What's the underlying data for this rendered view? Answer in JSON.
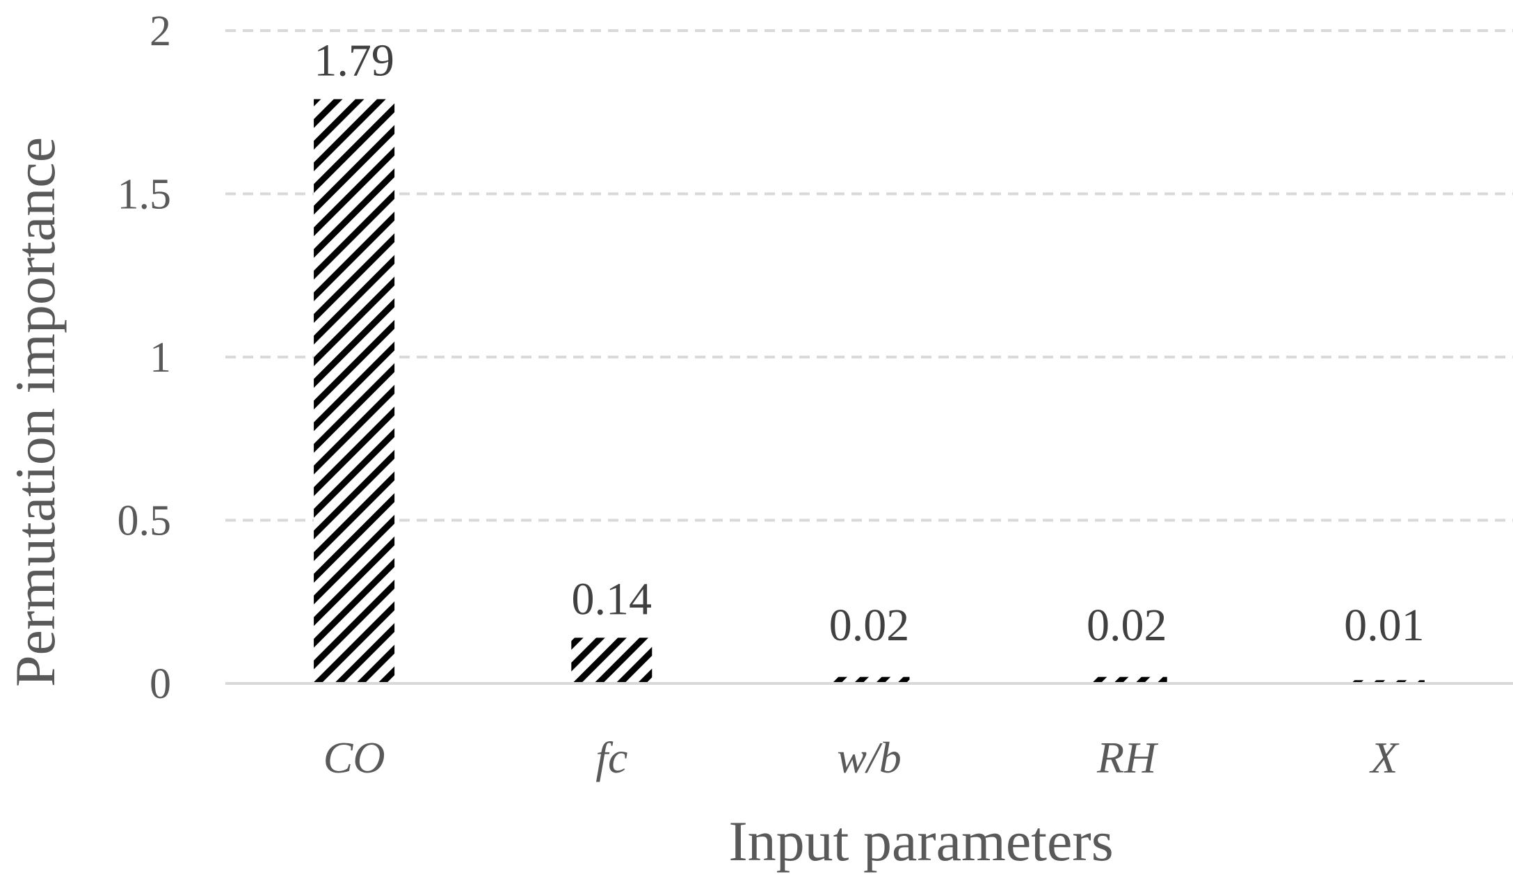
{
  "chart_data": {
    "type": "bar",
    "title": "",
    "xlabel": "Input parameters",
    "ylabel": "Permutation importance",
    "categories": [
      "CO",
      "fc",
      "w/b",
      "RH",
      "X"
    ],
    "values": [
      1.79,
      0.14,
      0.02,
      0.02,
      0.01
    ],
    "data_labels": [
      "1.79",
      "0.14",
      "0.02",
      "0.02",
      "0.01"
    ],
    "ylim": [
      0,
      2
    ],
    "yticks": [
      0,
      0.5,
      1,
      1.5,
      2
    ],
    "ytick_labels": [
      "0",
      "0.5",
      "1",
      "1.5",
      "2"
    ],
    "grid": true,
    "grid_style": "dashed",
    "legend": "none",
    "bar_fill": "diagonal-hatch",
    "colors": {
      "bar_pattern": "#000000",
      "bar_background": "#ffffff",
      "grid": "#d9d9d9",
      "axis": "#d9d9d9",
      "text": "#595959",
      "data_label_text": "#404040"
    }
  }
}
